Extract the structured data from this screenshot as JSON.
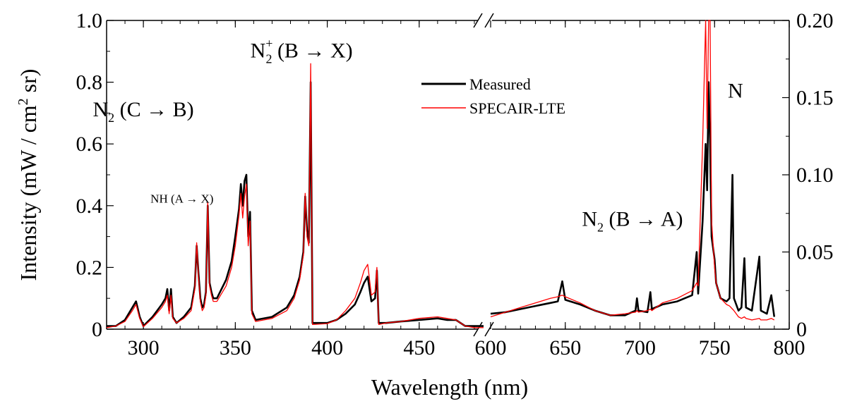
{
  "chart_data": {
    "type": "line",
    "title": "",
    "xlabel": "Wavelength (nm)",
    "ylabel": "Intensity (mW / cm2 sr)",
    "ylabel_parts": {
      "main": "Intensity (mW / cm",
      "sup": "2",
      "end": " sr)"
    },
    "axis_break": {
      "from": 485,
      "to": 600
    },
    "xlim_left": [
      280,
      485
    ],
    "xlim_right": [
      600,
      800
    ],
    "ylim_left": [
      0,
      1.0
    ],
    "ylim_right": [
      0,
      0.2
    ],
    "x_ticks_left": [
      {
        "v": 300,
        "label": "300"
      },
      {
        "v": 350,
        "label": "350"
      },
      {
        "v": 400,
        "label": "400"
      },
      {
        "v": 450,
        "label": "450"
      }
    ],
    "x_ticks_right": [
      {
        "v": 600,
        "label": "600"
      },
      {
        "v": 650,
        "label": "650"
      },
      {
        "v": 700,
        "label": "700"
      },
      {
        "v": 750,
        "label": "750"
      },
      {
        "v": 800,
        "label": "800"
      }
    ],
    "y_ticks_left": [
      {
        "v": 0,
        "label": "0"
      },
      {
        "v": 0.2,
        "label": "0.2"
      },
      {
        "v": 0.4,
        "label": "0.4"
      },
      {
        "v": 0.6,
        "label": "0.6"
      },
      {
        "v": 0.8,
        "label": "0.8"
      },
      {
        "v": 1.0,
        "label": "1.0"
      }
    ],
    "y_ticks_right": [
      {
        "v": 0,
        "label": "0"
      },
      {
        "v": 0.05,
        "label": "0.05"
      },
      {
        "v": 0.1,
        "label": "0.10"
      },
      {
        "v": 0.15,
        "label": "0.15"
      },
      {
        "v": 0.2,
        "label": "0.20"
      }
    ],
    "grid": false,
    "legend_position": "top-center",
    "series": [
      {
        "name": "Measured",
        "color": "#000000",
        "points_left": [
          [
            280,
            0.01
          ],
          [
            285,
            0.01
          ],
          [
            290,
            0.03
          ],
          [
            294,
            0.07
          ],
          [
            296,
            0.09
          ],
          [
            298,
            0.04
          ],
          [
            300,
            0.01
          ],
          [
            305,
            0.04
          ],
          [
            310,
            0.08
          ],
          [
            312,
            0.1
          ],
          [
            313,
            0.13
          ],
          [
            314,
            0.06
          ],
          [
            315,
            0.13
          ],
          [
            316,
            0.04
          ],
          [
            318,
            0.02
          ],
          [
            322,
            0.04
          ],
          [
            326,
            0.07
          ],
          [
            328,
            0.14
          ],
          [
            329,
            0.27
          ],
          [
            330,
            0.18
          ],
          [
            331,
            0.1
          ],
          [
            332,
            0.07
          ],
          [
            333,
            0.08
          ],
          [
            334,
            0.12
          ],
          [
            335,
            0.4
          ],
          [
            336,
            0.15
          ],
          [
            337,
            0.12
          ],
          [
            338,
            0.1
          ],
          [
            340,
            0.1
          ],
          [
            345,
            0.16
          ],
          [
            348,
            0.22
          ],
          [
            350,
            0.3
          ],
          [
            352,
            0.39
          ],
          [
            353,
            0.47
          ],
          [
            354,
            0.4
          ],
          [
            355,
            0.48
          ],
          [
            356,
            0.5
          ],
          [
            357,
            0.3
          ],
          [
            358,
            0.38
          ],
          [
            359,
            0.06
          ],
          [
            361,
            0.03
          ],
          [
            370,
            0.04
          ],
          [
            378,
            0.07
          ],
          [
            382,
            0.11
          ],
          [
            385,
            0.17
          ],
          [
            387,
            0.25
          ],
          [
            388,
            0.43
          ],
          [
            389,
            0.32
          ],
          [
            390,
            0.28
          ],
          [
            391,
            0.8
          ],
          [
            392,
            0.02
          ],
          [
            400,
            0.02
          ],
          [
            405,
            0.03
          ],
          [
            410,
            0.05
          ],
          [
            415,
            0.08
          ],
          [
            418,
            0.12
          ],
          [
            420,
            0.15
          ],
          [
            422,
            0.17
          ],
          [
            424,
            0.09
          ],
          [
            426,
            0.1
          ],
          [
            427,
            0.19
          ],
          [
            428,
            0.02
          ],
          [
            432,
            0.02
          ],
          [
            440,
            0.025
          ],
          [
            450,
            0.03
          ],
          [
            460,
            0.035
          ],
          [
            465,
            0.03
          ],
          [
            470,
            0.03
          ],
          [
            475,
            0.01
          ],
          [
            480,
            0.01
          ],
          [
            485,
            0.01
          ]
        ],
        "points_right": [
          [
            600,
            0.01
          ],
          [
            610,
            0.011
          ],
          [
            620,
            0.013
          ],
          [
            630,
            0.015
          ],
          [
            640,
            0.017
          ],
          [
            645,
            0.018
          ],
          [
            648,
            0.031
          ],
          [
            650,
            0.019
          ],
          [
            660,
            0.016
          ],
          [
            670,
            0.012
          ],
          [
            680,
            0.009
          ],
          [
            690,
            0.009
          ],
          [
            697,
            0.012
          ],
          [
            698,
            0.02
          ],
          [
            699,
            0.012
          ],
          [
            705,
            0.011
          ],
          [
            707,
            0.024
          ],
          [
            708,
            0.013
          ],
          [
            715,
            0.016
          ],
          [
            725,
            0.018
          ],
          [
            735,
            0.022
          ],
          [
            738,
            0.05
          ],
          [
            739,
            0.023
          ],
          [
            742,
            0.07
          ],
          [
            744,
            0.12
          ],
          [
            745,
            0.09
          ],
          [
            746,
            0.16
          ],
          [
            747,
            0.12
          ],
          [
            748,
            0.06
          ],
          [
            750,
            0.045
          ],
          [
            751,
            0.03
          ],
          [
            754,
            0.02
          ],
          [
            758,
            0.018
          ],
          [
            760,
            0.02
          ],
          [
            762,
            0.1
          ],
          [
            763,
            0.02
          ],
          [
            766,
            0.012
          ],
          [
            768,
            0.014
          ],
          [
            770,
            0.046
          ],
          [
            771,
            0.014
          ],
          [
            775,
            0.012
          ],
          [
            780,
            0.047
          ],
          [
            781,
            0.012
          ],
          [
            785,
            0.01
          ],
          [
            788,
            0.022
          ],
          [
            790,
            0.008
          ]
        ]
      },
      {
        "name": "SPECAIR-LTE",
        "color": "#ff0000",
        "points_left": [
          [
            280,
            0.005
          ],
          [
            285,
            0.01
          ],
          [
            290,
            0.025
          ],
          [
            294,
            0.06
          ],
          [
            296,
            0.08
          ],
          [
            298,
            0.035
          ],
          [
            300,
            0.008
          ],
          [
            305,
            0.035
          ],
          [
            310,
            0.07
          ],
          [
            312,
            0.09
          ],
          [
            313,
            0.11
          ],
          [
            314,
            0.05
          ],
          [
            315,
            0.11
          ],
          [
            316,
            0.035
          ],
          [
            318,
            0.02
          ],
          [
            322,
            0.035
          ],
          [
            326,
            0.06
          ],
          [
            328,
            0.13
          ],
          [
            329,
            0.28
          ],
          [
            330,
            0.17
          ],
          [
            331,
            0.09
          ],
          [
            332,
            0.06
          ],
          [
            333,
            0.07
          ],
          [
            334,
            0.11
          ],
          [
            335,
            0.41
          ],
          [
            336,
            0.14
          ],
          [
            337,
            0.11
          ],
          [
            338,
            0.09
          ],
          [
            340,
            0.09
          ],
          [
            345,
            0.14
          ],
          [
            348,
            0.2
          ],
          [
            350,
            0.27
          ],
          [
            352,
            0.37
          ],
          [
            353,
            0.44
          ],
          [
            354,
            0.36
          ],
          [
            355,
            0.43
          ],
          [
            356,
            0.47
          ],
          [
            357,
            0.27
          ],
          [
            358,
            0.35
          ],
          [
            359,
            0.05
          ],
          [
            361,
            0.025
          ],
          [
            370,
            0.035
          ],
          [
            378,
            0.06
          ],
          [
            382,
            0.1
          ],
          [
            385,
            0.16
          ],
          [
            387,
            0.24
          ],
          [
            388,
            0.44
          ],
          [
            389,
            0.3
          ],
          [
            390,
            0.27
          ],
          [
            391,
            0.86
          ],
          [
            392,
            0.015
          ],
          [
            400,
            0.018
          ],
          [
            405,
            0.03
          ],
          [
            410,
            0.06
          ],
          [
            415,
            0.1
          ],
          [
            418,
            0.15
          ],
          [
            420,
            0.19
          ],
          [
            422,
            0.21
          ],
          [
            424,
            0.11
          ],
          [
            426,
            0.12
          ],
          [
            427,
            0.2
          ],
          [
            428,
            0.015
          ],
          [
            432,
            0.02
          ],
          [
            440,
            0.025
          ],
          [
            450,
            0.035
          ],
          [
            460,
            0.04
          ],
          [
            465,
            0.035
          ],
          [
            470,
            0.03
          ],
          [
            475,
            0.01
          ],
          [
            480,
            0.005
          ],
          [
            485,
            0.005
          ]
        ],
        "points_right": [
          [
            600,
            0.008
          ],
          [
            610,
            0.011
          ],
          [
            620,
            0.014
          ],
          [
            630,
            0.017
          ],
          [
            640,
            0.02
          ],
          [
            645,
            0.021
          ],
          [
            648,
            0.022
          ],
          [
            650,
            0.021
          ],
          [
            660,
            0.017
          ],
          [
            670,
            0.012
          ],
          [
            680,
            0.009
          ],
          [
            690,
            0.01
          ],
          [
            697,
            0.011
          ],
          [
            698,
            0.012
          ],
          [
            699,
            0.011
          ],
          [
            705,
            0.012
          ],
          [
            707,
            0.013
          ],
          [
            708,
            0.012
          ],
          [
            715,
            0.017
          ],
          [
            725,
            0.02
          ],
          [
            735,
            0.025
          ],
          [
            738,
            0.03
          ],
          [
            739,
            0.028
          ],
          [
            742,
            0.12
          ],
          [
            744,
            0.2
          ],
          [
            745,
            0.13
          ],
          [
            746,
            0.2
          ],
          [
            747,
            0.2
          ],
          [
            748,
            0.07
          ],
          [
            750,
            0.04
          ],
          [
            751,
            0.03
          ],
          [
            754,
            0.02
          ],
          [
            758,
            0.016
          ],
          [
            760,
            0.015
          ],
          [
            762,
            0.013
          ],
          [
            763,
            0.012
          ],
          [
            766,
            0.008
          ],
          [
            768,
            0.007
          ],
          [
            770,
            0.008
          ],
          [
            771,
            0.007
          ],
          [
            775,
            0.006
          ],
          [
            780,
            0.007
          ],
          [
            781,
            0.006
          ],
          [
            785,
            0.006
          ],
          [
            788,
            0.007
          ],
          [
            790,
            0.006
          ]
        ]
      }
    ],
    "annotations": [
      {
        "id": "n2cb",
        "text": "N",
        "sub": "2",
        "rest": " (C → B)",
        "x": 300,
        "y": 0.69,
        "panel": "left",
        "size": "large"
      },
      {
        "id": "nh",
        "text": "NH (A → X)",
        "x": 321,
        "y": 0.41,
        "panel": "left",
        "size": "small"
      },
      {
        "id": "n2plus",
        "text": "N",
        "sub": "2",
        "sup": "+",
        "rest": " (B → X)",
        "x": 386,
        "y": 0.88,
        "panel": "left",
        "size": "large"
      },
      {
        "id": "n2ba",
        "text": "N",
        "sub": "2",
        "rest": " (B → A)",
        "x": 695,
        "y": 0.067,
        "panel": "right",
        "size": "large"
      },
      {
        "id": "natom",
        "text": "N",
        "x": 764,
        "y": 0.15,
        "panel": "right",
        "size": "large"
      }
    ]
  }
}
